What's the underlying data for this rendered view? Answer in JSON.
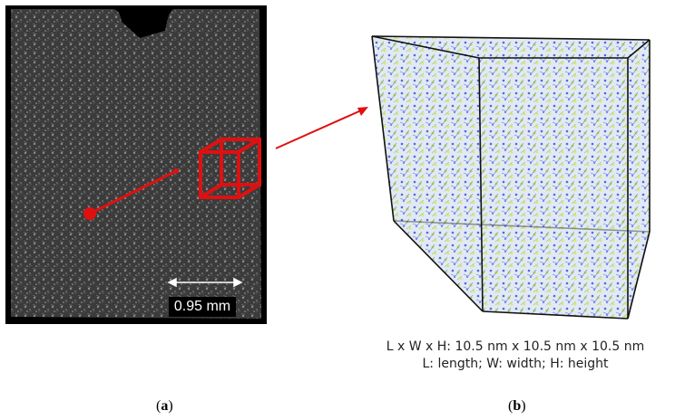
{
  "panel_a": {
    "scale_bar_label": "0.95 mm",
    "panel_label": "a"
  },
  "panel_b": {
    "dimensions_caption": "L x W x H: 10.5 nm x 10.5 nm x 10.5 nm",
    "legend_caption": "L: length; W: width; H: height",
    "panel_label": "b"
  },
  "colors": {
    "highlight_red": "#e01010",
    "atom_blue": "#3a5ad8",
    "atom_green": "#b6e03a",
    "frame_black": "#111111"
  },
  "icons": [
    "cube-outline-icon",
    "arrow-right-icon",
    "dot-marker-icon"
  ]
}
